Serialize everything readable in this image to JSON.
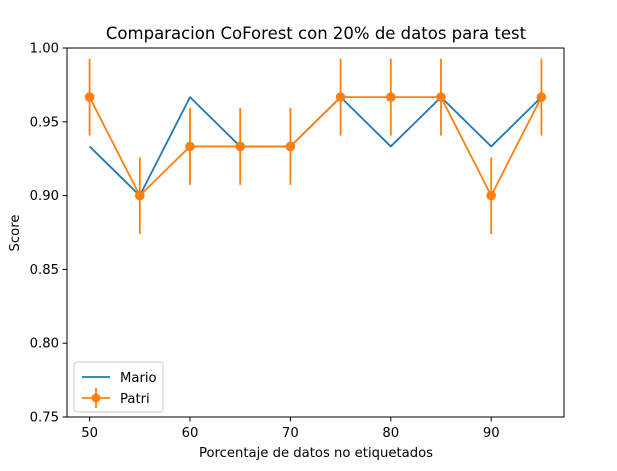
{
  "chart_data": {
    "type": "line",
    "title": "Comparacion CoForest con 20% de datos para test",
    "xlabel": "Porcentaje de datos no etiquetados",
    "ylabel": "Score",
    "xlim": [
      47.75,
      97.25
    ],
    "ylim": [
      0.75,
      1.0
    ],
    "x_ticks": [
      50,
      60,
      70,
      80,
      90
    ],
    "y_ticks": [
      0.75,
      0.8,
      0.85,
      0.9,
      0.95,
      1.0
    ],
    "x_tick_labels": [
      "50",
      "60",
      "70",
      "80",
      "90"
    ],
    "y_tick_labels": [
      "0.75",
      "0.80",
      "0.85",
      "0.90",
      "0.95",
      "1.00"
    ],
    "grid": false,
    "legend_position": "lower-left",
    "x": [
      50,
      55,
      60,
      65,
      70,
      75,
      80,
      85,
      90,
      95
    ],
    "series": [
      {
        "name": "Mario",
        "color": "#1f77b4",
        "marker": "none",
        "values": [
          0.9333,
          0.9,
          0.9667,
          0.9333,
          0.9333,
          0.9667,
          0.9333,
          0.9667,
          0.9333,
          0.9667
        ]
      },
      {
        "name": "Patri",
        "color": "#ff7f0e",
        "marker": "circle",
        "values": [
          0.9667,
          0.9,
          0.9333,
          0.9333,
          0.9333,
          0.9667,
          0.9667,
          0.9667,
          0.9,
          0.9667
        ],
        "error": [
          0.026,
          0.026,
          0.026,
          0.026,
          0.026,
          0.026,
          0.026,
          0.026,
          0.026,
          0.026
        ]
      }
    ]
  }
}
